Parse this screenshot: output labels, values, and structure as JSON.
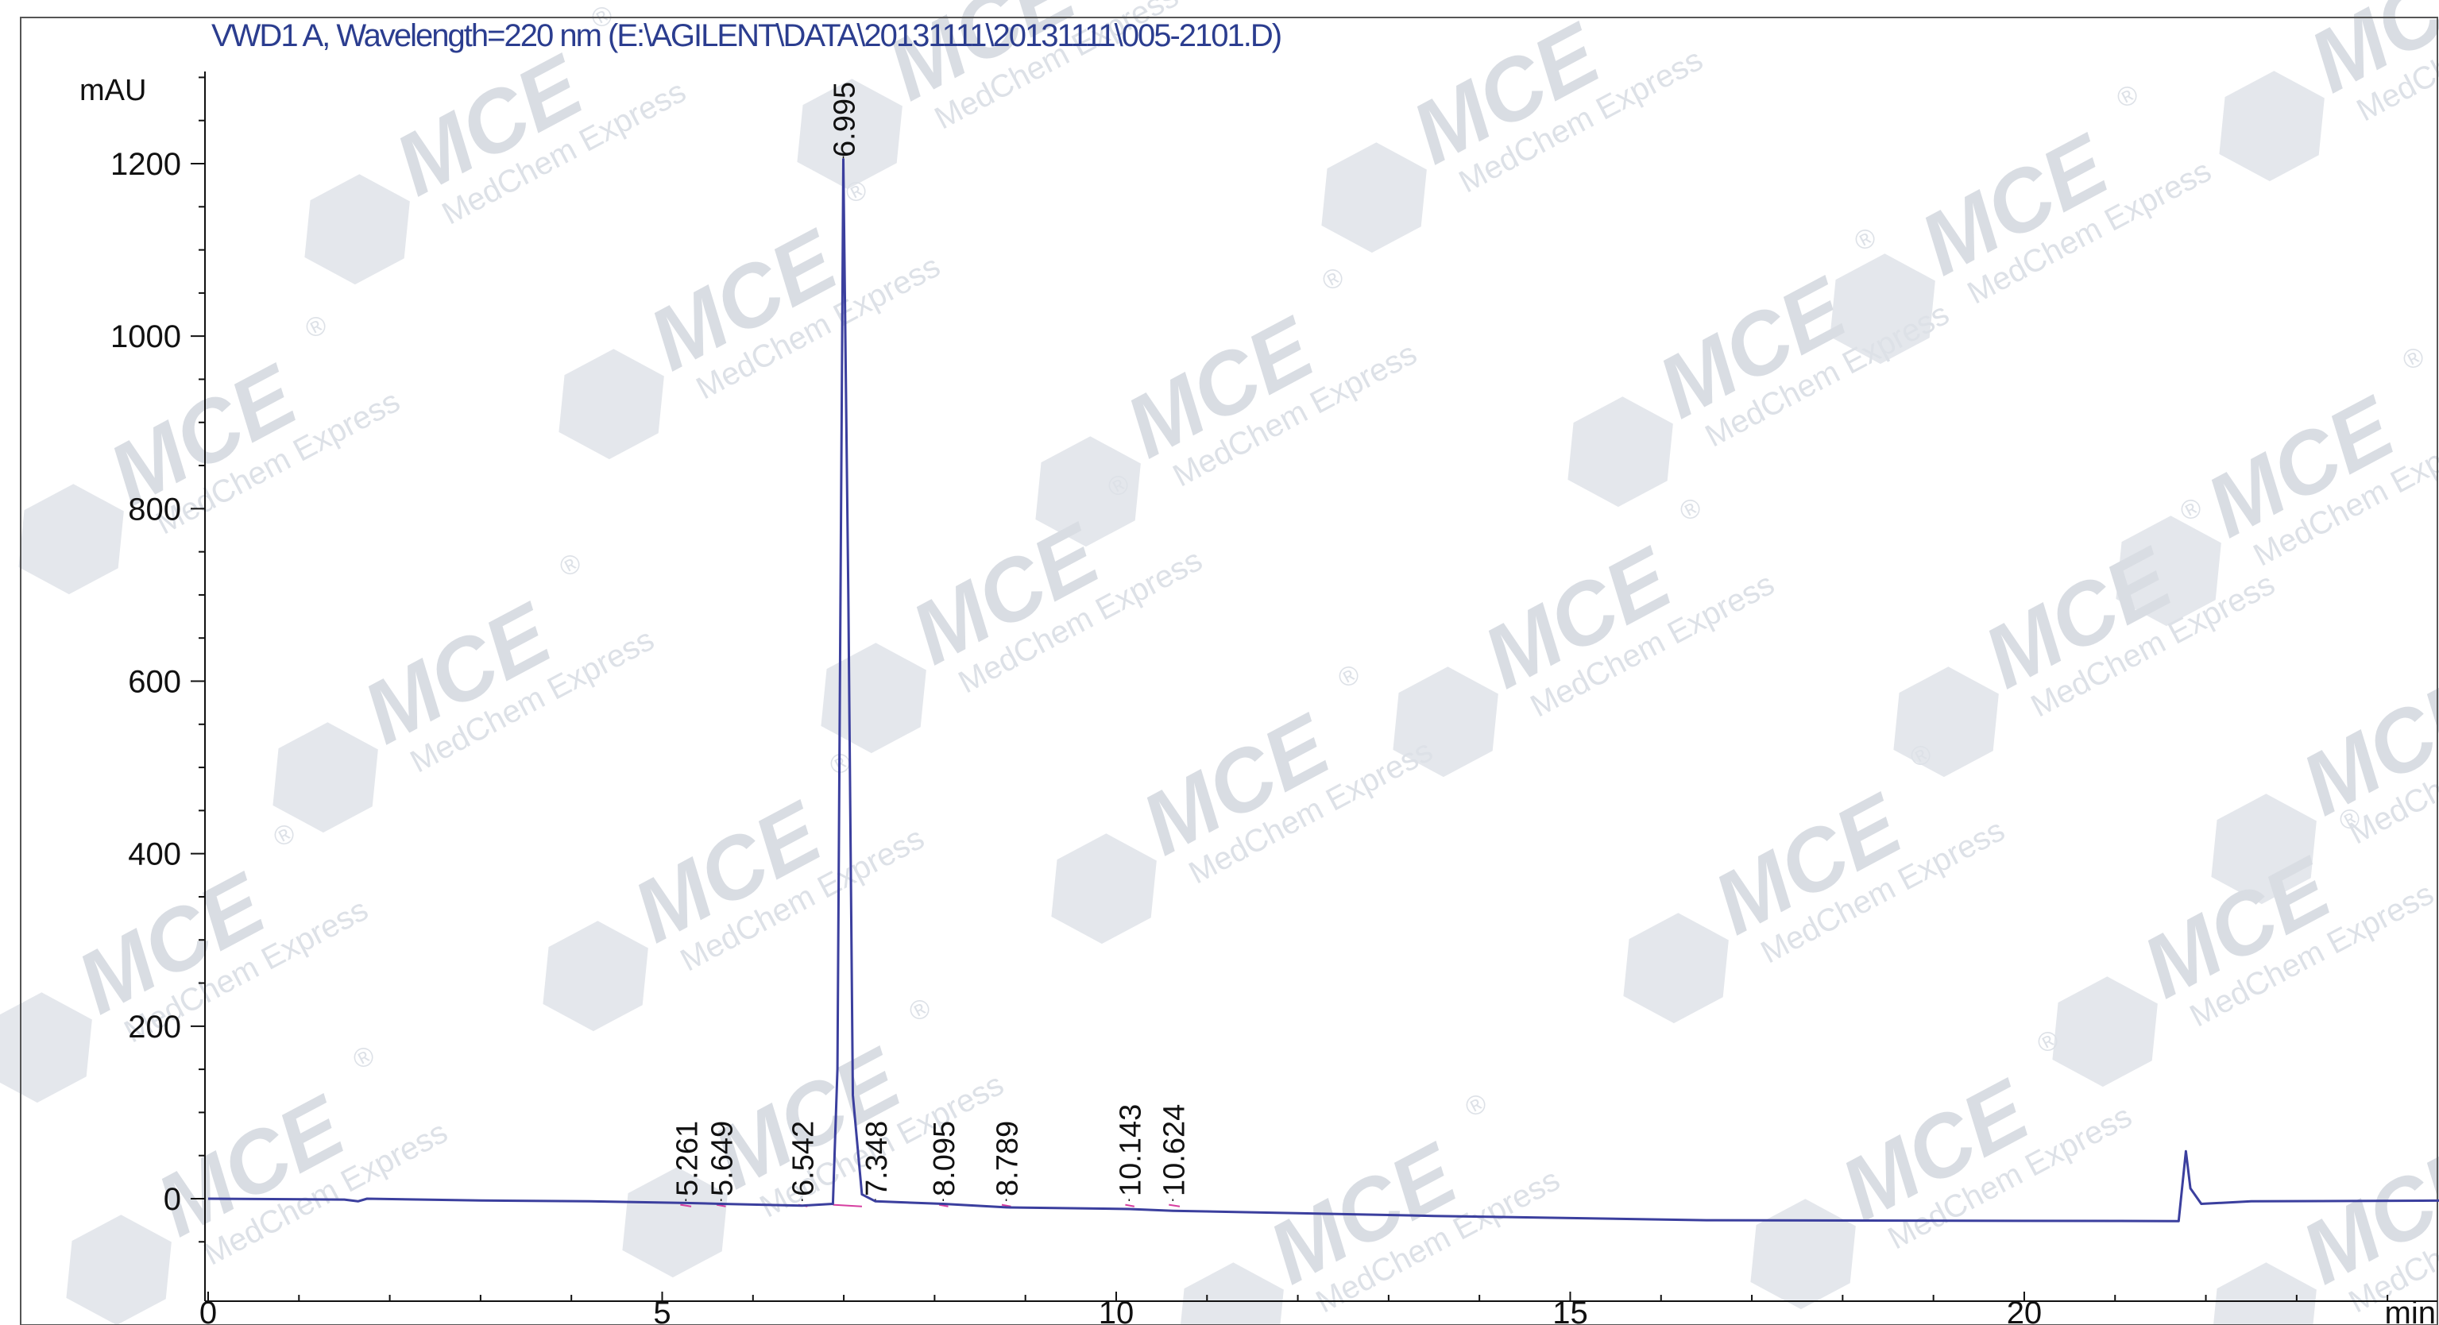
{
  "chart_data": {
    "type": "line",
    "title": "VWD1 A, Wavelength=220 nm (E:\\AGILENT\\DATA\\20131111\\20131111\\005-2101.D)",
    "ylabel": "mAU",
    "xlabel": "min",
    "xlim": [
      0,
      25
    ],
    "ylim": [
      -90,
      1300
    ],
    "x_ticks": [
      "0",
      "5",
      "10",
      "15",
      "20"
    ],
    "y_ticks": [
      "0",
      "200",
      "400",
      "600",
      "800",
      "1000",
      "1200"
    ],
    "series": [
      {
        "color": "#3b3f9e",
        "points": [
          [
            0,
            0
          ],
          [
            1.5,
            -1
          ],
          [
            1.65,
            -3
          ],
          [
            1.75,
            0
          ],
          [
            3,
            -2
          ],
          [
            4.2,
            -3
          ],
          [
            5.261,
            -5
          ],
          [
            5.649,
            -6
          ],
          [
            6.542,
            -8
          ],
          [
            6.88,
            -6
          ],
          [
            6.93,
            150
          ],
          [
            6.995,
            1205
          ],
          [
            7.05,
            700
          ],
          [
            7.1,
            120
          ],
          [
            7.2,
            5
          ],
          [
            7.348,
            -3
          ],
          [
            8.095,
            -6
          ],
          [
            8.789,
            -10
          ],
          [
            10.143,
            -12
          ],
          [
            10.624,
            -14
          ],
          [
            13.5,
            -20
          ],
          [
            16.5,
            -25
          ],
          [
            21.7,
            -26
          ],
          [
            21.78,
            55
          ],
          [
            21.83,
            12
          ],
          [
            21.95,
            -6
          ],
          [
            22.5,
            -3
          ],
          [
            25,
            -2
          ]
        ]
      }
    ],
    "peaks": [
      "5.261",
      "5.649",
      "6.542",
      "6.995",
      "7.348",
      "8.095",
      "8.789",
      "10.143",
      "10.624"
    ],
    "peak_times": [
      5.261,
      5.649,
      6.542,
      6.995,
      7.348,
      8.095,
      8.789,
      10.143,
      10.624
    ],
    "watermark": {
      "brand": "MCE",
      "sub": "MedChem Express",
      "reg": "®"
    },
    "colors": {
      "trace": "#3b3f9e",
      "baseline": "#d63ea0",
      "title": "#2b3d8f",
      "axis": "#111111",
      "watermark": "#d9dde3"
    }
  }
}
